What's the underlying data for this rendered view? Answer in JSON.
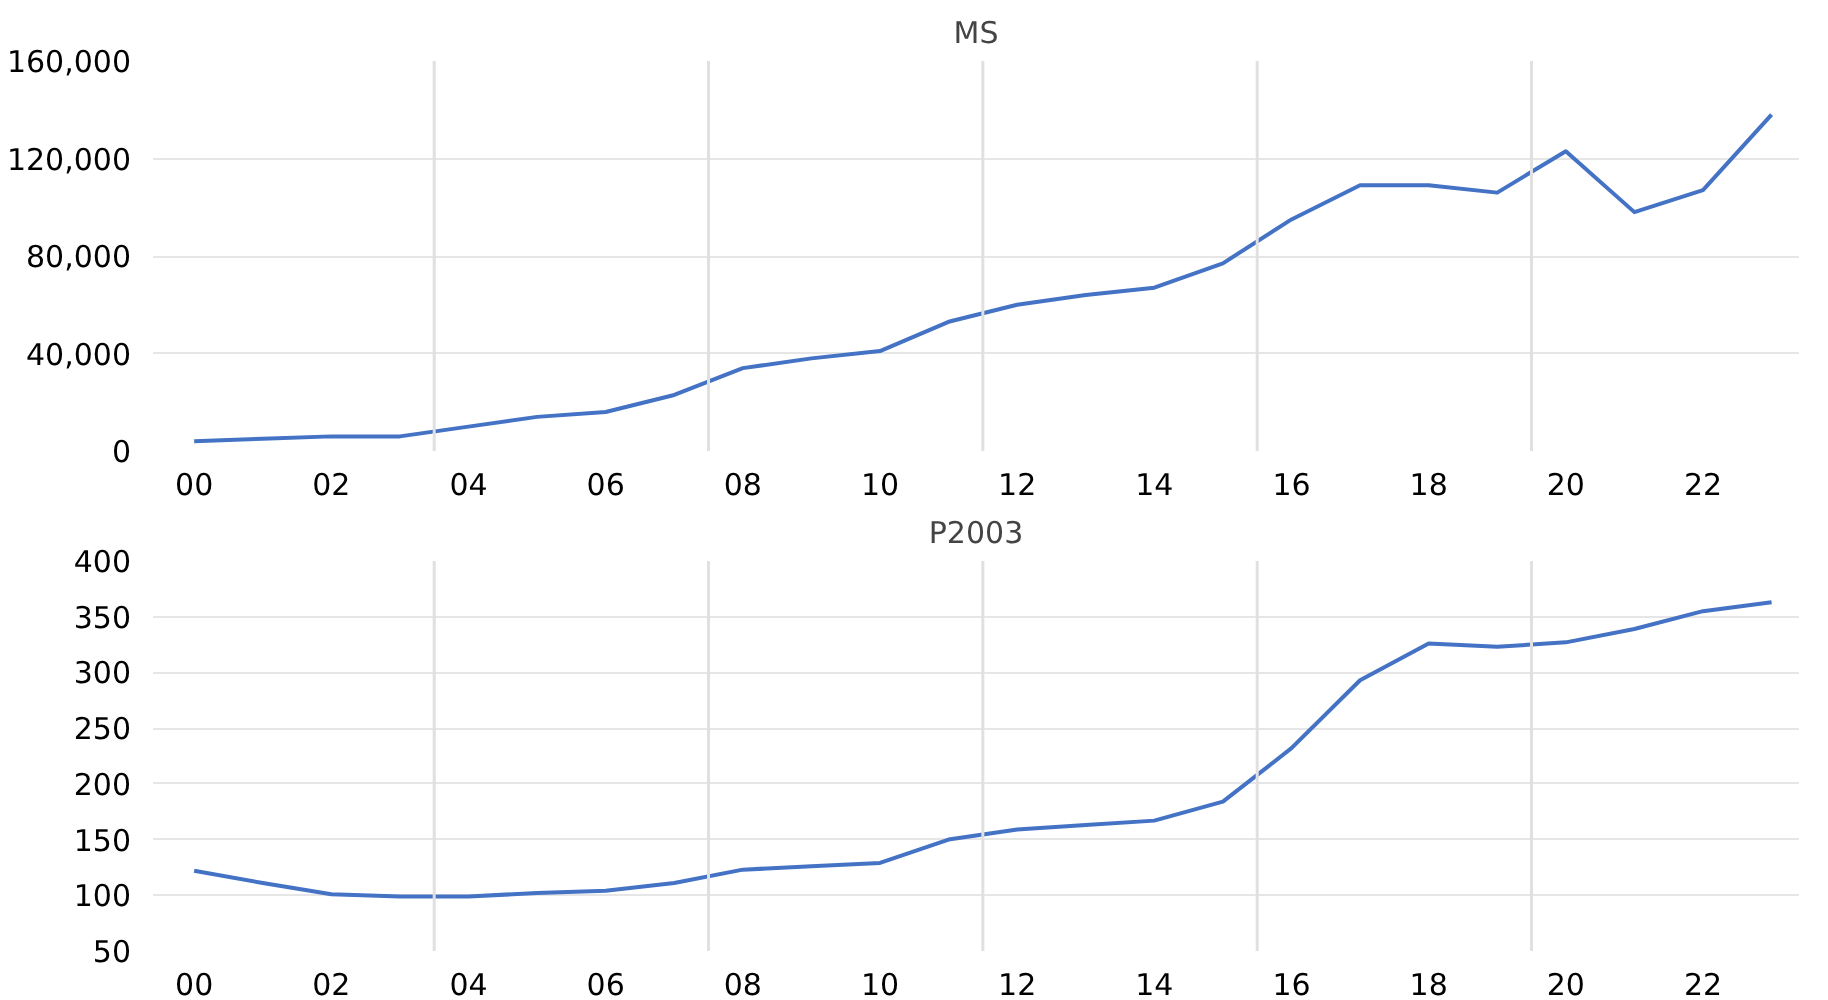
{
  "chart_data": [
    {
      "type": "line",
      "title": "MS",
      "categories": [
        "00",
        null,
        "02",
        null,
        "04",
        null,
        "06",
        null,
        "08",
        null,
        "10",
        null,
        "12",
        null,
        "14",
        null,
        "16",
        null,
        "18",
        null,
        "20",
        null,
        "22",
        null
      ],
      "series": [
        {
          "color": "#4472c4",
          "values": [
            4000,
            5000,
            6000,
            6000,
            10000,
            14000,
            16000,
            23000,
            34000,
            38000,
            41000,
            53000,
            60000,
            64000,
            67000,
            77000,
            95000,
            109000,
            109000,
            106000,
            123000,
            98000,
            107000,
            138000
          ]
        }
      ],
      "ylim": [
        0,
        160000
      ],
      "yticks": [
        {
          "value": 0,
          "label": "0"
        },
        {
          "value": 40000,
          "label": "40,000"
        },
        {
          "value": 80000,
          "label": "80,000"
        },
        {
          "value": 120000,
          "label": "120,000"
        },
        {
          "value": 160000,
          "label": "160,000"
        }
      ],
      "grid": true,
      "marker": "none",
      "line_style": "solid"
    },
    {
      "type": "line",
      "title": "P2003",
      "categories": [
        "00",
        null,
        "02",
        null,
        "04",
        null,
        "06",
        null,
        "08",
        null,
        "10",
        null,
        "12",
        null,
        "14",
        null,
        "16",
        null,
        "18",
        null,
        "20",
        null,
        "22",
        null
      ],
      "series": [
        {
          "color": "#4472c4",
          "values": [
            122,
            111,
            101,
            99,
            99,
            102,
            104,
            111,
            123,
            126,
            129,
            150,
            159,
            163,
            167,
            184,
            232,
            293,
            326,
            323,
            327,
            339,
            355,
            363
          ]
        }
      ],
      "ylim": [
        50,
        400
      ],
      "yticks": [
        50,
        100,
        150,
        200,
        250,
        300,
        350,
        400
      ],
      "grid": true,
      "marker": "none",
      "line_style": "solid"
    }
  ]
}
